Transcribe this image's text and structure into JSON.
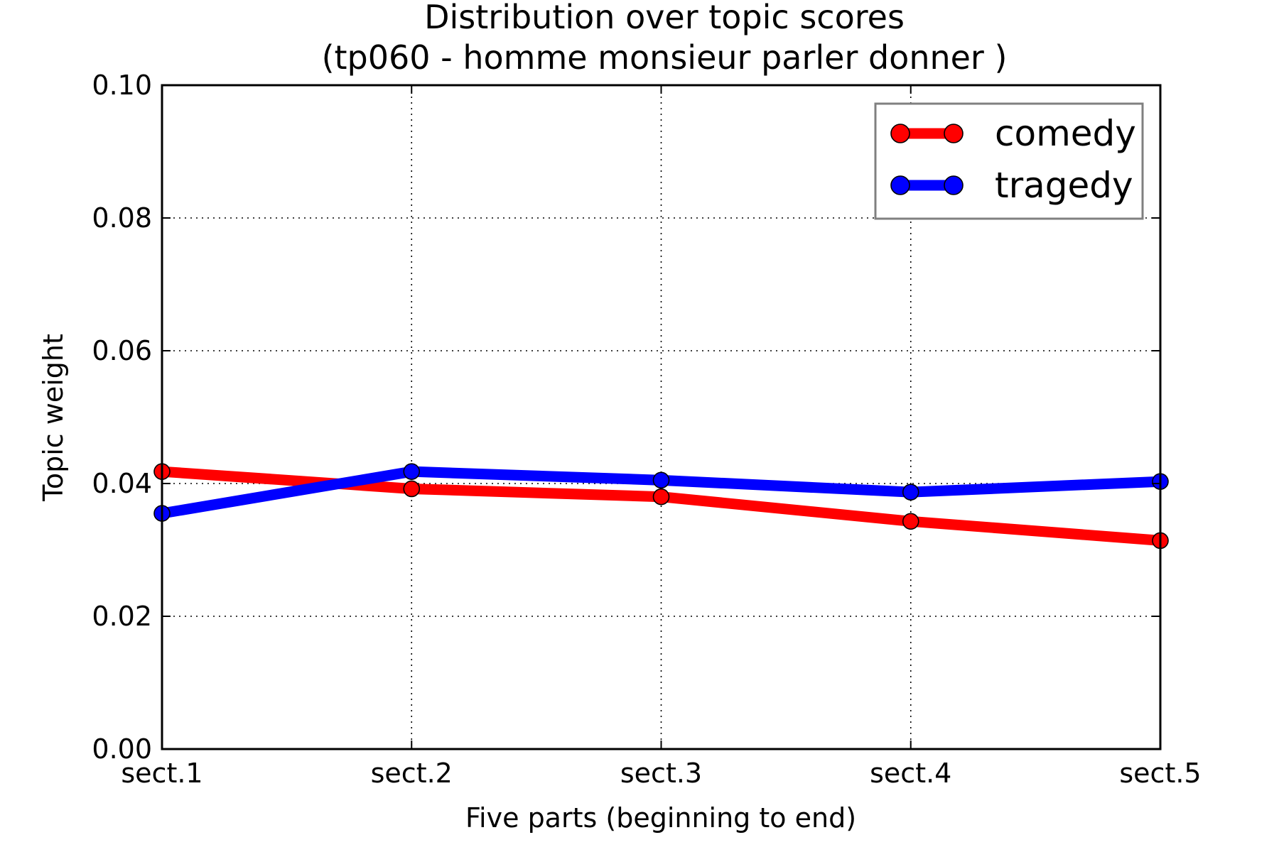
{
  "chart_data": {
    "type": "line",
    "title": "Distribution over topic scores",
    "subtitle": "(tp060 - homme monsieur parler donner )",
    "xlabel": "Five parts (beginning to end)",
    "ylabel": "Topic weight",
    "categories": [
      "sect.1",
      "sect.2",
      "sect.3",
      "sect.4",
      "sect.5"
    ],
    "ylim": [
      0,
      0.1
    ],
    "yticks": [
      "0.00",
      "0.02",
      "0.04",
      "0.06",
      "0.08",
      "0.10"
    ],
    "grid": true,
    "legend_position": "top-right",
    "series": [
      {
        "name": "comedy",
        "color": "#ff0000",
        "values": [
          0.0418,
          0.0392,
          0.038,
          0.0343,
          0.0314
        ]
      },
      {
        "name": "tragedy",
        "color": "#0000ff",
        "values": [
          0.0355,
          0.0418,
          0.0405,
          0.0387,
          0.0403
        ]
      }
    ]
  }
}
